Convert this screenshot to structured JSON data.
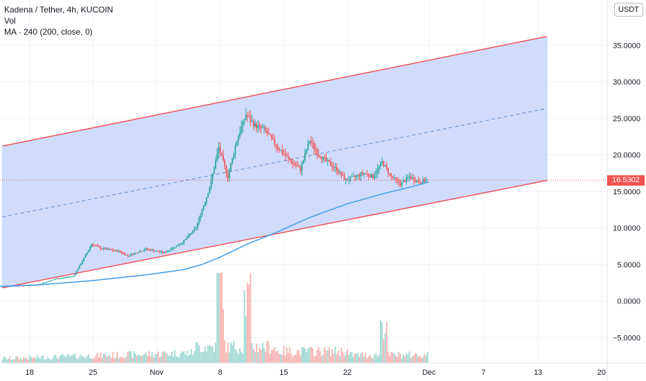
{
  "header": {
    "symbol_line": "Kadena / Tether, 4h, KUCOIN",
    "vol_label": "Vol",
    "ma_label": "MA · 240 (200, close, 0)"
  },
  "currency_button": "USDT",
  "colors": {
    "up": "#26a69a",
    "down": "#ef5350",
    "channel_fill": "#c9d6fb",
    "channel_line": "#f0505b",
    "midline": "#5b8dd6",
    "ma": "#3d9be9",
    "price_line": "#ef5350",
    "grid": "#f0f3fa"
  },
  "chart_data": {
    "type": "candlestick",
    "title": "Kadena / Tether, 4h, KUCOIN",
    "last_price_label": "16.5302",
    "last_price": 16.5302,
    "y_ticks": [
      "35.0000",
      "30.0000",
      "25.0000",
      "20.0000",
      "15.0000",
      "10.0000",
      "5.0000",
      "0.0000",
      "−5.0000"
    ],
    "y_tick_values": [
      35,
      30,
      25,
      20,
      15,
      10,
      5,
      0,
      -5
    ],
    "x_ticks": [
      "18",
      "25",
      "Nov",
      "8",
      "15",
      "22",
      "Dec",
      "7",
      "13",
      "20"
    ],
    "x_tick_days": [
      -13,
      -6,
      1,
      8,
      15,
      22,
      31,
      37,
      43,
      50
    ],
    "x_axis_note": "days relative to Oct 31",
    "ylim": [
      -8.5,
      38.5
    ],
    "price_path": [
      {
        "day": -16,
        "price": 2.0
      },
      {
        "day": -12,
        "price": 2.2
      },
      {
        "day": -10,
        "price": 3.0
      },
      {
        "day": -8,
        "price": 3.4
      },
      {
        "day": -7,
        "price": 5.5
      },
      {
        "day": -6,
        "price": 7.8
      },
      {
        "day": -5,
        "price": 7.2
      },
      {
        "day": -3,
        "price": 6.8
      },
      {
        "day": -2,
        "price": 6.2
      },
      {
        "day": 0,
        "price": 7.1
      },
      {
        "day": 2,
        "price": 6.6
      },
      {
        "day": 4,
        "price": 8.0
      },
      {
        "day": 5.5,
        "price": 10.0
      },
      {
        "day": 7,
        "price": 15.5
      },
      {
        "day": 8,
        "price": 21.0
      },
      {
        "day": 9,
        "price": 17.0
      },
      {
        "day": 10,
        "price": 22.0
      },
      {
        "day": 11,
        "price": 25.5
      },
      {
        "day": 12,
        "price": 24.0
      },
      {
        "day": 13,
        "price": 23.5
      },
      {
        "day": 14.5,
        "price": 21.0
      },
      {
        "day": 16,
        "price": 19.0
      },
      {
        "day": 17,
        "price": 18.0
      },
      {
        "day": 18,
        "price": 22.0
      },
      {
        "day": 19,
        "price": 20.0
      },
      {
        "day": 21,
        "price": 18.0
      },
      {
        "day": 22,
        "price": 16.5
      },
      {
        "day": 24,
        "price": 17.5
      },
      {
        "day": 25,
        "price": 17.0
      },
      {
        "day": 26,
        "price": 19.0
      },
      {
        "day": 27,
        "price": 17.0
      },
      {
        "day": 28,
        "price": 16.0
      },
      {
        "day": 29,
        "price": 17.0
      },
      {
        "day": 30,
        "price": 16.3
      },
      {
        "day": 31,
        "price": 16.53
      }
    ],
    "ma_path": [
      {
        "day": -20,
        "price": 1.8
      },
      {
        "day": -12,
        "price": 2.2
      },
      {
        "day": -6,
        "price": 2.8
      },
      {
        "day": 0,
        "price": 3.6
      },
      {
        "day": 4,
        "price": 4.3
      },
      {
        "day": 6,
        "price": 5.0
      },
      {
        "day": 8,
        "price": 6.0
      },
      {
        "day": 11,
        "price": 7.8
      },
      {
        "day": 14,
        "price": 9.3
      },
      {
        "day": 18,
        "price": 11.5
      },
      {
        "day": 22,
        "price": 13.3
      },
      {
        "day": 26,
        "price": 14.7
      },
      {
        "day": 29,
        "price": 15.6
      },
      {
        "day": 31,
        "price": 16.3
      }
    ],
    "channel": {
      "upper": [
        {
          "day": -16,
          "price": 21.2
        },
        {
          "day": 44,
          "price": 36.2
        }
      ],
      "lower": [
        {
          "day": -16,
          "price": 1.8
        },
        {
          "day": 44,
          "price": 16.5
        }
      ],
      "mid": [
        {
          "day": -16,
          "price": 11.5
        },
        {
          "day": 44,
          "price": 26.35
        }
      ]
    },
    "volume_panel": {
      "label": "Vol",
      "peaks": [
        {
          "day": 8,
          "relative": 1.0
        },
        {
          "day": 11,
          "relative": 0.72
        },
        {
          "day": 26,
          "relative": 0.45
        }
      ]
    },
    "grid": true,
    "legend_position": "top-left"
  }
}
